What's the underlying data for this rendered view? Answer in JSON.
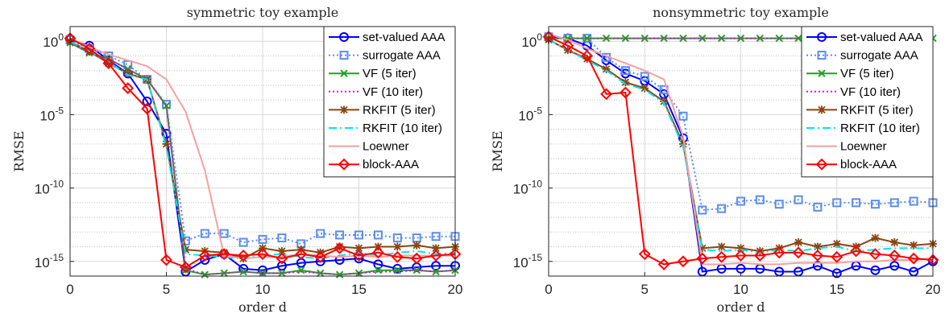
{
  "chart_data": [
    {
      "type": "line",
      "title": "symmetric toy example",
      "xlabel": "order d",
      "ylabel": "RMSE",
      "xlim": [
        0,
        20
      ],
      "ylim_exponent": [
        -16,
        1
      ],
      "y_scale": "log",
      "x_ticks": [
        "0",
        "5",
        "10",
        "15",
        "20"
      ],
      "y_tick_exponents": [
        0,
        -5,
        -10,
        -15
      ],
      "grid": true,
      "legend_position": "top-right",
      "x": [
        0,
        1,
        2,
        3,
        4,
        5,
        6,
        7,
        8,
        9,
        10,
        11,
        12,
        13,
        14,
        15,
        16,
        17,
        18,
        19,
        20
      ],
      "series": [
        {
          "name": "set-valued AAA",
          "color": "#0000ff",
          "dash": "solid",
          "marker": "circle",
          "show_line": true,
          "log10_values": [
            0.1,
            -0.3,
            -1.3,
            -2.2,
            -4.1,
            -6.3,
            -15.7,
            -14.9,
            -14.5,
            -15.5,
            -15.6,
            -15.3,
            -15.1,
            -15.0,
            -14.9,
            -14.8,
            -15.2,
            -15.5,
            -15.4,
            -15.3,
            -15.3
          ]
        },
        {
          "name": "surrogate AAA",
          "color": "#5b8cf0",
          "dash": "dotted",
          "marker": "square",
          "show_line": true,
          "log10_values": [
            0.1,
            -0.5,
            -1.0,
            -1.6,
            -2.6,
            -4.3,
            -13.6,
            -13.1,
            -13.1,
            -13.7,
            -13.5,
            -13.4,
            -13.8,
            -13.1,
            -13.2,
            -13.2,
            -13.2,
            -13.4,
            -13.4,
            -13.3,
            -13.3
          ]
        },
        {
          "name": "VF (5 iter)",
          "color": "#1fa31f",
          "dash": "solid",
          "marker": "x",
          "show_line": true,
          "log10_values": [
            -0.1,
            -0.8,
            -1.2,
            -1.9,
            -2.6,
            -4.4,
            -15.6,
            -15.9,
            -15.8,
            -15.7,
            -15.8,
            -15.8,
            -15.6,
            -15.8,
            -15.9,
            -15.8,
            -15.6,
            -15.6,
            -15.6,
            -15.7,
            -15.6
          ]
        },
        {
          "name": "VF (10 iter)",
          "color": "#e600e6",
          "dash": "dotted",
          "marker": "none",
          "show_line": true,
          "log10_values": [
            -0.1,
            -0.8,
            -1.2,
            -1.9,
            -2.6,
            -4.4,
            -15.5,
            -15.9,
            -15.8,
            -15.7,
            -15.8,
            -15.8,
            -15.7,
            -15.8,
            -15.9,
            -15.8,
            -15.7,
            -15.7,
            -15.6,
            -15.7,
            -15.6
          ]
        },
        {
          "name": "RKFIT (5 iter)",
          "color": "#8b4513",
          "dash": "solid",
          "marker": "star",
          "show_line": true,
          "log10_values": [
            0.0,
            -0.7,
            -1.5,
            -2.2,
            -2.6,
            -7.0,
            -14.2,
            -14.3,
            -14.4,
            -14.8,
            -14.1,
            -14.3,
            -14.2,
            -14.4,
            -14.0,
            -14.1,
            -14.0,
            -14.0,
            -13.9,
            -14.1,
            -14.0
          ]
        },
        {
          "name": "RKFIT (10 iter)",
          "color": "#00e5ee",
          "dash": "dashdot",
          "marker": "none",
          "show_line": true,
          "log10_values": [
            0.0,
            -0.7,
            -1.4,
            -2.3,
            -2.6,
            -7.2,
            -14.5,
            -14.6,
            -14.7,
            -14.8,
            -14.6,
            -14.5,
            -14.7,
            -14.8,
            -14.6,
            -14.4,
            -14.6,
            -14.4,
            -14.3,
            -14.5,
            -14.4
          ]
        },
        {
          "name": "Loewner",
          "color": "#f5a0a0",
          "dash": "solid",
          "marker": "none",
          "show_line": true,
          "log10_values": [
            0.2,
            -0.4,
            -0.9,
            -1.3,
            -1.7,
            -2.6,
            -4.8,
            -8.8,
            -14.6,
            -14.8,
            -14.7,
            -14.7,
            -14.5,
            -14.6,
            -14.7,
            -14.6,
            -14.7,
            -14.6,
            -14.6,
            -14.6,
            -14.6
          ]
        },
        {
          "name": "block-AAA",
          "color": "#ff0000",
          "dash": "solid",
          "marker": "diamond",
          "show_line": true,
          "log10_values": [
            0.2,
            -0.5,
            -1.5,
            -3.2,
            -4.6,
            -14.9,
            -15.4,
            -14.6,
            -14.5,
            -14.6,
            -14.5,
            -14.8,
            -14.5,
            -14.7,
            -14.1,
            -14.6,
            -14.4,
            -14.7,
            -14.8,
            -14.6,
            -14.5
          ]
        }
      ]
    },
    {
      "type": "line",
      "title": "nonsymmetric toy example",
      "xlabel": "order d",
      "ylabel": "RMSE",
      "xlim": [
        0,
        20
      ],
      "ylim_exponent": [
        -16,
        1
      ],
      "y_scale": "log",
      "x_ticks": [
        "0",
        "5",
        "10",
        "15",
        "20"
      ],
      "y_tick_exponents": [
        0,
        -5,
        -10,
        -15
      ],
      "grid": true,
      "legend_position": "top-right",
      "x": [
        0,
        1,
        2,
        3,
        4,
        5,
        6,
        7,
        8,
        9,
        10,
        11,
        12,
        13,
        14,
        15,
        16,
        17,
        18,
        19,
        20
      ],
      "series": [
        {
          "name": "set-valued AAA",
          "color": "#0000ff",
          "dash": "solid",
          "marker": "circle",
          "show_line": true,
          "log10_values": [
            0.3,
            0.2,
            -0.3,
            -1.3,
            -2.2,
            -2.7,
            -3.6,
            -6.6,
            -15.7,
            -15.5,
            -15.5,
            -15.5,
            -15.7,
            -15.7,
            -15.3,
            -15.8,
            -15.3,
            -15.6,
            -15.3,
            -15.7,
            -15.0
          ]
        },
        {
          "name": "surrogate AAA",
          "color": "#5b8cf0",
          "dash": "dotted",
          "marker": "square",
          "show_line": true,
          "log10_values": [
            0.3,
            0.2,
            0.2,
            -1.1,
            -2.0,
            -2.4,
            -3.3,
            -5.1,
            -11.5,
            -11.4,
            -10.9,
            -10.8,
            -11.1,
            -10.8,
            -11.3,
            -11.0,
            -11.0,
            -11.1,
            -11.0,
            -10.9,
            -11.0
          ]
        },
        {
          "name": "VF (5 iter)",
          "color": "#1fa31f",
          "dash": "solid",
          "marker": "x",
          "show_line": true,
          "log10_values": [
            0.2,
            0.2,
            0.2,
            0.2,
            0.2,
            0.2,
            0.2,
            0.2,
            0.2,
            0.2,
            0.2,
            0.2,
            0.2,
            0.2,
            0.2,
            0.2,
            0.2,
            0.2,
            0.2,
            0.2,
            0.2
          ]
        },
        {
          "name": "VF (10 iter)",
          "color": "#e600e6",
          "dash": "dotted",
          "marker": "none",
          "show_line": true,
          "log10_values": [
            0.2,
            0.2,
            0.2,
            0.2,
            0.2,
            0.2,
            0.2,
            0.2,
            0.2,
            0.2,
            0.2,
            0.2,
            0.2,
            0.2,
            0.2,
            0.2,
            0.2,
            0.2,
            0.2,
            0.2,
            0.2
          ]
        },
        {
          "name": "RKFIT (5 iter)",
          "color": "#8b4513",
          "dash": "solid",
          "marker": "star",
          "show_line": true,
          "log10_values": [
            0.1,
            -0.6,
            -1.2,
            -1.9,
            -2.8,
            -3.2,
            -4.1,
            -7.0,
            -14.1,
            -14.0,
            -14.1,
            -14.3,
            -14.1,
            -13.7,
            -14.0,
            -13.8,
            -14.0,
            -13.4,
            -13.7,
            -13.9,
            -13.8
          ]
        },
        {
          "name": "RKFIT (10 iter)",
          "color": "#00e5ee",
          "dash": "dashdot",
          "marker": "none",
          "show_line": true,
          "log10_values": [
            0.1,
            -0.6,
            -1.3,
            -2.0,
            -2.9,
            -3.3,
            -4.2,
            -7.2,
            -14.2,
            -14.3,
            -14.2,
            -14.4,
            -14.2,
            -14.3,
            -14.1,
            -14.0,
            -14.3,
            -14.2,
            -14.1,
            -14.1,
            -14.1
          ]
        },
        {
          "name": "Loewner",
          "color": "#f5a0a0",
          "dash": "solid",
          "marker": "none",
          "show_line": true,
          "log10_values": [
            0.5,
            0.1,
            -0.5,
            -1.0,
            -1.5,
            -2.0,
            -2.6,
            -6.5,
            -15.2,
            -15.2,
            -15.1,
            -15.2,
            -15.2,
            -15.1,
            -15.1,
            -15.1,
            -15.0,
            -15.0,
            -14.9,
            -14.9,
            -14.8
          ]
        },
        {
          "name": "block-AAA",
          "color": "#ff0000",
          "dash": "solid",
          "marker": "diamond",
          "show_line": true,
          "log10_values": [
            0.3,
            -0.3,
            -1.0,
            -3.6,
            -3.5,
            -14.5,
            -15.2,
            -15.0,
            -14.8,
            -14.7,
            -14.6,
            -14.6,
            -14.4,
            -14.4,
            -14.6,
            -14.7,
            -14.3,
            -14.5,
            -14.6,
            -14.8,
            -14.9
          ]
        }
      ]
    }
  ]
}
